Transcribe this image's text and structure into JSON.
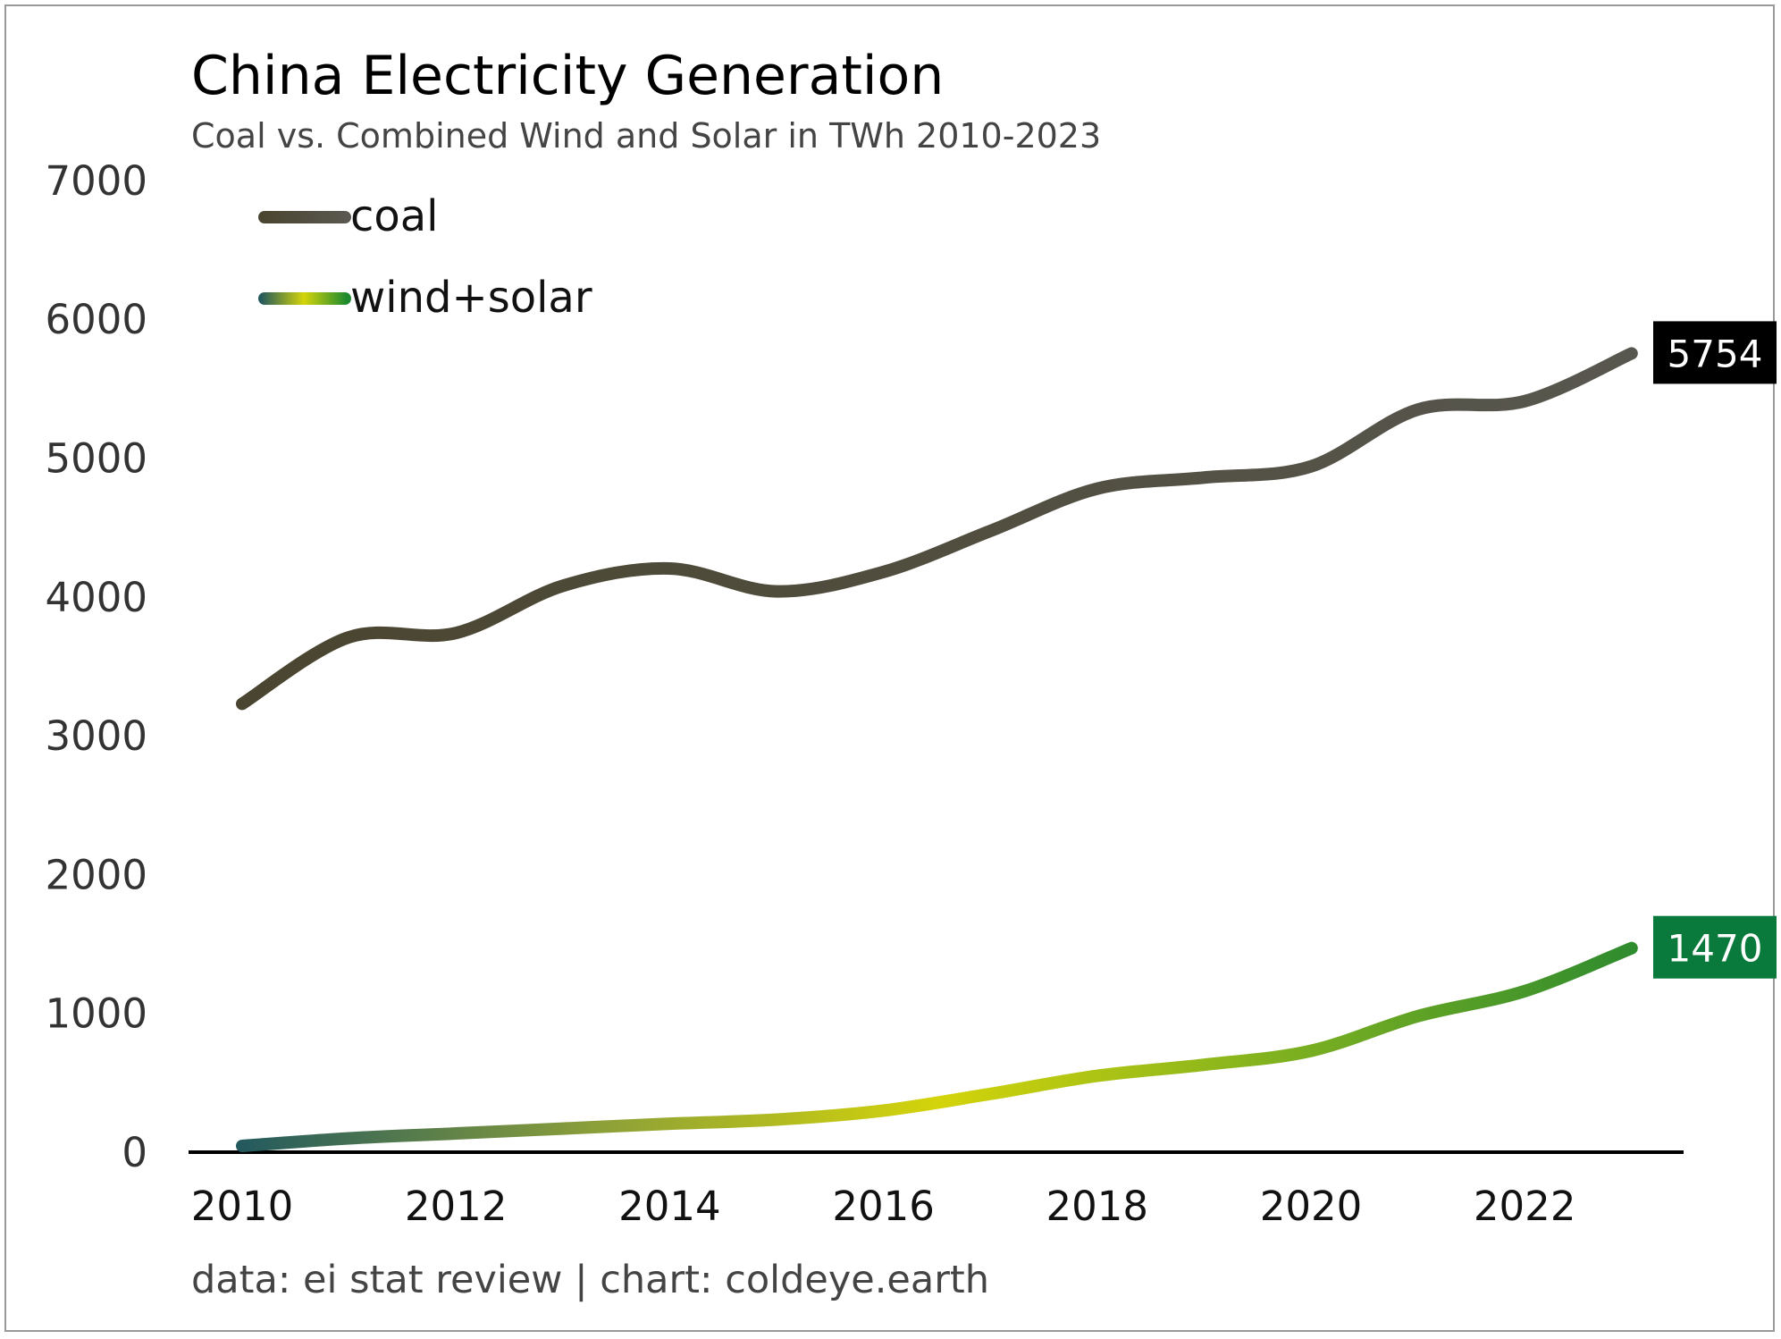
{
  "chart_data": {
    "type": "line",
    "title": "China Electricity Generation",
    "subtitle": "Coal vs. Combined Wind and Solar in TWh 2010-2023",
    "xlabel": "",
    "ylabel": "",
    "ylim": [
      0,
      7000
    ],
    "yticks": [
      0,
      1000,
      2000,
      3000,
      4000,
      5000,
      6000,
      7000
    ],
    "ytick_labels": [
      "0",
      "1000",
      "2000",
      "3000",
      "4000",
      "5000",
      "6000",
      "7000"
    ],
    "xticks": [
      2010,
      2012,
      2014,
      2016,
      2018,
      2020,
      2022
    ],
    "xtick_labels": [
      "2010",
      "2012",
      "2014",
      "2016",
      "2018",
      "2020",
      "2022"
    ],
    "x": [
      2010,
      2011,
      2012,
      2013,
      2014,
      2015,
      2016,
      2017,
      2018,
      2019,
      2020,
      2021,
      2022,
      2023
    ],
    "grid": false,
    "legend_position": "top-left",
    "series": [
      {
        "name": "coal",
        "end_label": "5754",
        "color": "#4a4530",
        "color_end": "#58574f",
        "values": [
          3230,
          3710,
          3740,
          4080,
          4205,
          4040,
          4180,
          4475,
          4780,
          4860,
          4940,
          5350,
          5410,
          5754
        ]
      },
      {
        "name": "wind+solar",
        "end_label": "1470",
        "color": "#2f8f2a",
        "label_bg": "#0a7a3c",
        "gradient": [
          "#245a5e",
          "#8a9e3a",
          "#d4d40a",
          "#7db020",
          "#2e8b2e"
        ],
        "values": [
          45,
          100,
          135,
          170,
          205,
          235,
          300,
          420,
          550,
          630,
          730,
          980,
          1160,
          1470
        ]
      }
    ],
    "footer": "data: ei stat review | chart: coldeye.earth",
    "end_label_colors": {
      "coal": "#000000",
      "wind+solar": "#0a7a3c"
    }
  }
}
